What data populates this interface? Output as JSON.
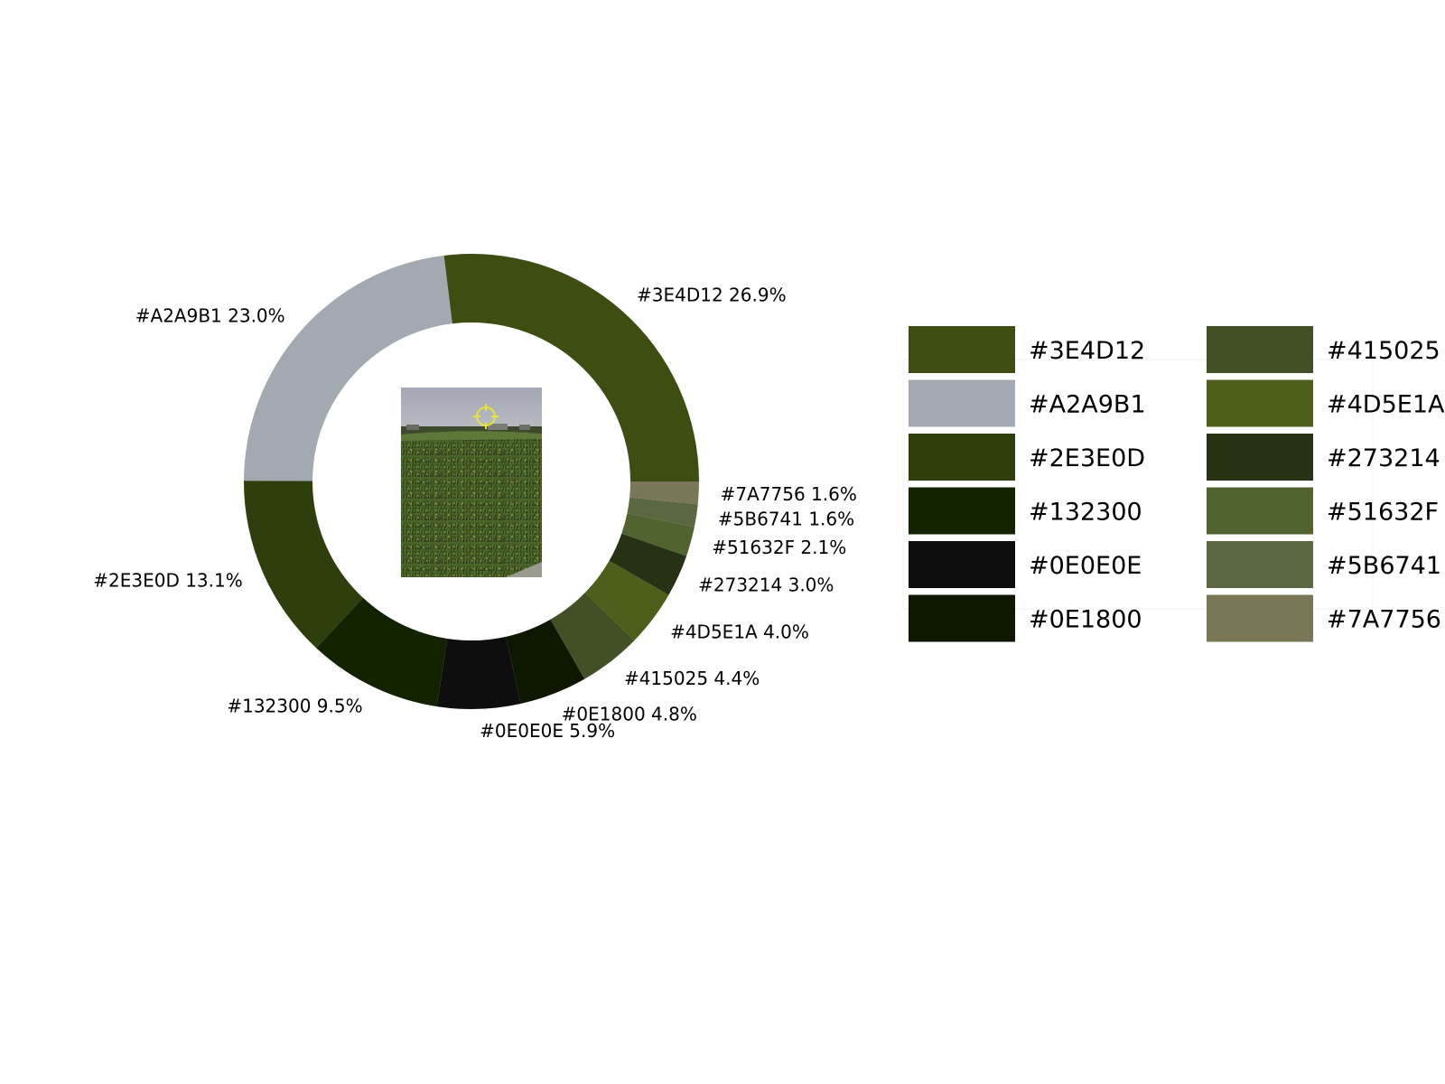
{
  "chart_data": {
    "type": "donut",
    "slices": [
      {
        "label": "#3E4D12",
        "value": 26.9,
        "color": "#3E4D12"
      },
      {
        "label": "#A2A9B1",
        "value": 23.0,
        "color": "#A2A9B1"
      },
      {
        "label": "#2E3E0D",
        "value": 13.1,
        "color": "#2E3E0D"
      },
      {
        "label": "#132300",
        "value": 9.5,
        "color": "#132300"
      },
      {
        "label": "#0E0E0E",
        "value": 5.9,
        "color": "#0E0E0E"
      },
      {
        "label": "#0E1800",
        "value": 4.8,
        "color": "#0E1800"
      },
      {
        "label": "#415025",
        "value": 4.4,
        "color": "#415025"
      },
      {
        "label": "#4D5E1A",
        "value": 4.0,
        "color": "#4D5E1A"
      },
      {
        "label": "#273214",
        "value": 3.0,
        "color": "#273214"
      },
      {
        "label": "#51632F",
        "value": 2.1,
        "color": "#51632F"
      },
      {
        "label": "#5B6741",
        "value": 1.6,
        "color": "#5B6741"
      },
      {
        "label": "#7A7756",
        "value": 1.6,
        "color": "#7A7756"
      }
    ],
    "slice_label_format": "{label} {value}%",
    "legend_position": "right",
    "legend_columns": 2,
    "center_content": "photo thumbnail: green field under grey sky with a yellow crosshair marker"
  }
}
